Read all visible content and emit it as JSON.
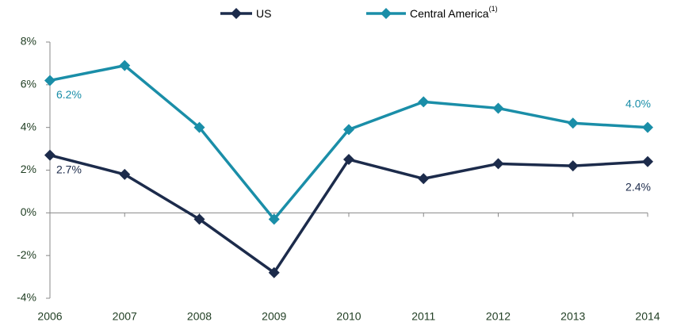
{
  "chart_data": {
    "type": "line",
    "categories": [
      "2006",
      "2007",
      "2008",
      "2009",
      "2010",
      "2011",
      "2012",
      "2013",
      "2014"
    ],
    "series": [
      {
        "name": "US",
        "color": "#1c2b4b",
        "values": [
          2.7,
          1.8,
          -0.3,
          -2.8,
          2.5,
          1.6,
          2.3,
          2.2,
          2.4
        ],
        "value_labels": [
          "2.7%",
          null,
          null,
          null,
          null,
          null,
          null,
          null,
          "2.4%"
        ]
      },
      {
        "name": "Central America",
        "footnote_mark": "(1)",
        "color": "#1a8ea8",
        "values": [
          6.2,
          6.9,
          4.0,
          -0.3,
          3.9,
          5.2,
          4.9,
          4.2,
          4.0
        ],
        "value_labels": [
          "6.2%",
          null,
          null,
          null,
          null,
          null,
          null,
          null,
          "4.0%"
        ]
      }
    ],
    "ylim": [
      -4,
      8
    ],
    "yticks": [
      {
        "value": -4,
        "label": "-4%"
      },
      {
        "value": -2,
        "label": "-2%"
      },
      {
        "value": 0,
        "label": "0%"
      },
      {
        "value": 2,
        "label": "2%"
      },
      {
        "value": 4,
        "label": "4%"
      },
      {
        "value": 6,
        "label": "6%"
      },
      {
        "value": 8,
        "label": "8%"
      }
    ],
    "legend": "top"
  }
}
